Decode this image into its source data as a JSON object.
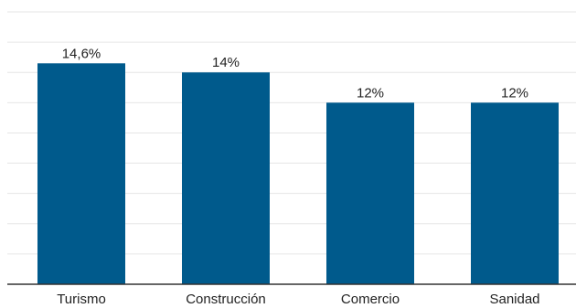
{
  "chart_data": {
    "type": "bar",
    "categories": [
      "Turismo",
      "Construcción",
      "Comercio",
      "Sanidad"
    ],
    "values": [
      14.6,
      14,
      12,
      12
    ],
    "data_labels": [
      "14,6%",
      "14%",
      "12%",
      "12%"
    ],
    "ylim": [
      0,
      18
    ],
    "grid": true,
    "bar_color": "#005a8c"
  }
}
